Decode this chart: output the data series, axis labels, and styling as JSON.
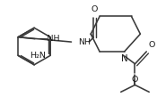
{
  "bg_color": "#ffffff",
  "line_color": "#3a3a3a",
  "line_width": 1.15,
  "text_color": "#1a1a1a",
  "font_size": 6.8,
  "xlim": [
    0,
    1
  ],
  "ylim": [
    0,
    1
  ]
}
